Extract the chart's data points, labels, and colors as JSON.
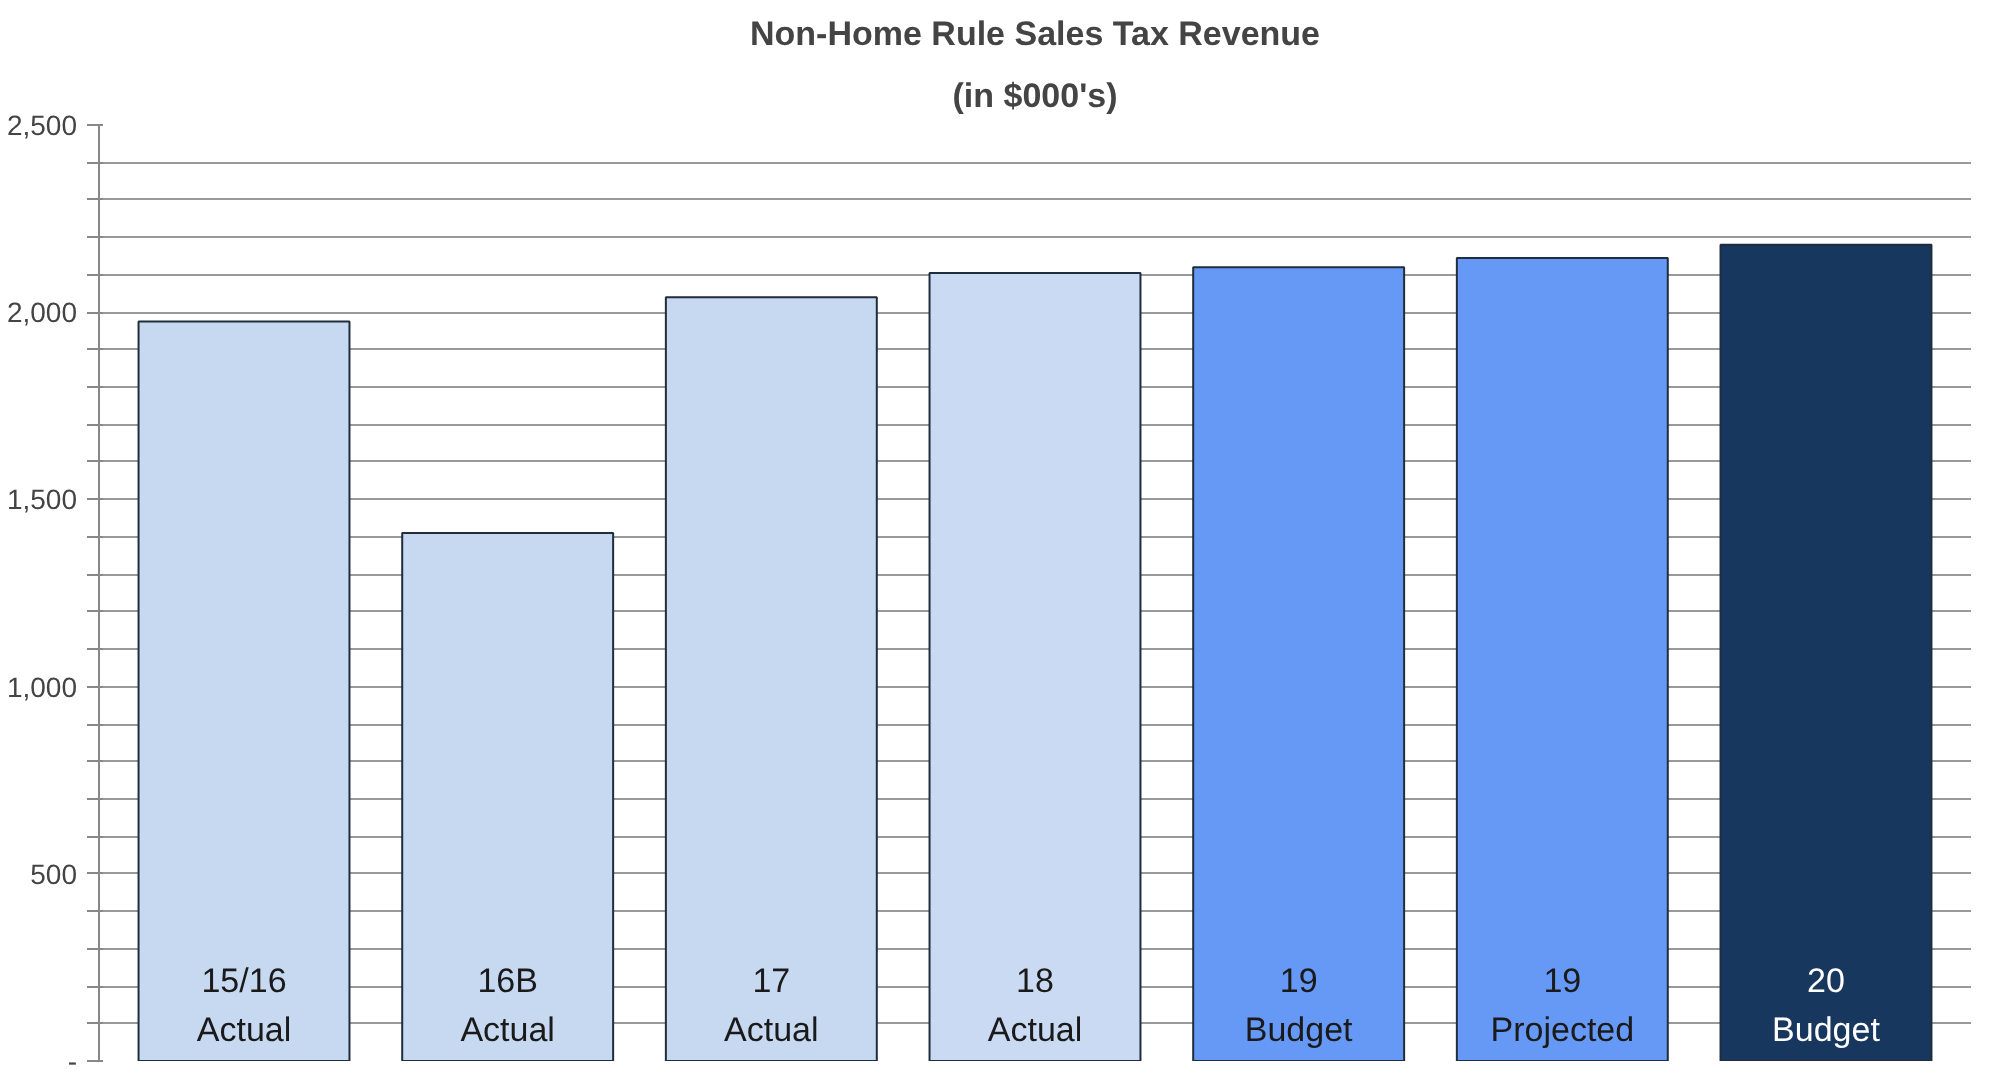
{
  "chart_data": {
    "type": "bar",
    "title": "Non-Home Rule Sales Tax Revenue",
    "subtitle": "(in $000's)",
    "categories": [
      "15/16\nActual",
      "16B\nActual",
      "17\nActual",
      "18\nActual",
      "19\nBudget",
      "19\nProjected",
      "20\nBudget"
    ],
    "values": [
      1975,
      1410,
      2040,
      2105,
      2120,
      2145,
      2180
    ],
    "colors": [
      "#c6d9f1",
      "#c6d9f1",
      "#c6d9f1",
      "#c9daf2",
      "#6699f5",
      "#6699f5",
      "#17375e"
    ],
    "ylim": [
      0,
      2500
    ],
    "yticks": [
      {
        "value": 0,
        "label": "-"
      },
      {
        "value": 100,
        "label": null
      },
      {
        "value": 200,
        "label": null
      },
      {
        "value": 300,
        "label": null
      },
      {
        "value": 400,
        "label": null
      },
      {
        "value": 500,
        "label": "500"
      },
      {
        "value": 600,
        "label": null
      },
      {
        "value": 700,
        "label": null
      },
      {
        "value": 800,
        "label": null
      },
      {
        "value": 900,
        "label": null
      },
      {
        "value": 1000,
        "label": "1,000"
      },
      {
        "value": 1100,
        "label": null
      },
      {
        "value": 1200,
        "label": null
      },
      {
        "value": 1300,
        "label": null
      },
      {
        "value": 1400,
        "label": null
      },
      {
        "value": 1500,
        "label": "1,500"
      },
      {
        "value": 1600,
        "label": null
      },
      {
        "value": 1700,
        "label": null
      },
      {
        "value": 1800,
        "label": null
      },
      {
        "value": 1900,
        "label": null
      },
      {
        "value": 2000,
        "label": "2,000"
      },
      {
        "value": 2100,
        "label": null
      },
      {
        "value": 2200,
        "label": null
      },
      {
        "value": 2300,
        "label": null
      },
      {
        "value": 2400,
        "label": null
      },
      {
        "value": 2500,
        "label": "2,500"
      }
    ],
    "grid": "y"
  }
}
